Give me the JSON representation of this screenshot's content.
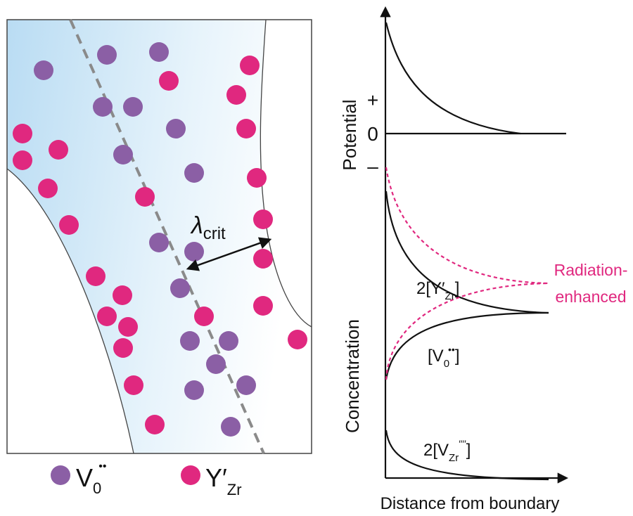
{
  "left_panel": {
    "lambda": {
      "main": "λ",
      "sub": "crit"
    },
    "legend": [
      {
        "main": "V",
        "sub": "0",
        "sup": "••"
      },
      {
        "main": "Y′",
        "sub": "Zr"
      }
    ]
  },
  "right_panel": {
    "potential_label": "Potential",
    "potential_ticks": [
      "+",
      "0",
      "–"
    ],
    "concentration_label": "Concentration",
    "x_label": "Distance from boundary",
    "curve_labels": [
      {
        "pre": "2[Y′",
        "sub": "Zr",
        "post": "]"
      },
      {
        "pre": "[V",
        "sub": "0",
        "sup": "••",
        "post": "]"
      },
      {
        "pre": "2[V",
        "sub": "Zr",
        "sup": "′′′′",
        "post": "]"
      }
    ],
    "annotation": [
      "Radiation-",
      "enhanced"
    ]
  }
}
